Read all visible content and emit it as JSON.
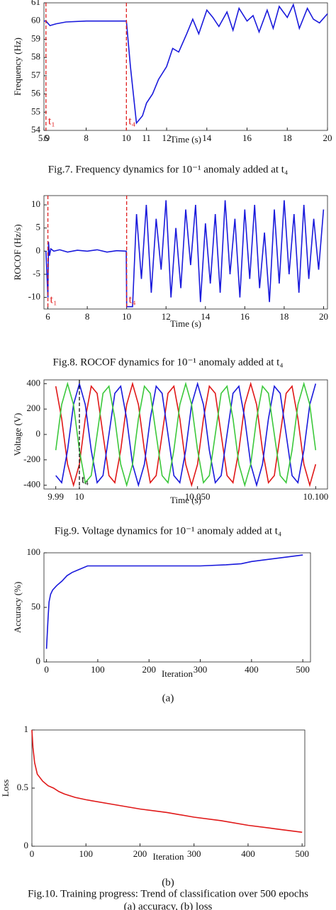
{
  "chart_data": [
    {
      "type": "line",
      "caption": "Fig.7.  Frequency dynamics for 10⁻¹ anomaly added at t₄",
      "xlabel": "Time (s)",
      "ylabel": "Frequency (Hz)",
      "x": [
        5.9,
        6,
        6.2,
        6.5,
        7,
        8,
        9,
        10,
        10.2,
        10.5,
        10.8,
        11,
        11.3,
        11.6,
        12,
        12.3,
        12.6,
        13,
        13.3,
        13.6,
        14,
        14.3,
        14.6,
        15,
        15.3,
        15.6,
        16,
        16.3,
        16.6,
        17,
        17.3,
        17.6,
        18,
        18.3,
        18.6,
        19,
        19.3,
        19.6,
        20
      ],
      "series": [
        {
          "color": "#1a1adc",
          "values": [
            60,
            60,
            59.75,
            59.85,
            59.95,
            60,
            60,
            60,
            57.5,
            54.4,
            54.8,
            55.5,
            56,
            56.8,
            57.5,
            58.5,
            58.3,
            59.3,
            60.1,
            59.3,
            60.6,
            60.2,
            59.7,
            60.5,
            59.5,
            60.7,
            60,
            60.3,
            59.4,
            60.6,
            59.6,
            60.8,
            60.2,
            60.9,
            59.6,
            60.7,
            60.1,
            59.9,
            60.4
          ]
        }
      ],
      "xlim": [
        5.9,
        20
      ],
      "xticks": [
        5.9,
        6,
        8,
        10,
        11,
        12,
        14,
        16,
        18,
        20
      ],
      "ylim": [
        54,
        61
      ],
      "yticks": [
        54,
        55,
        56,
        57,
        58,
        59,
        60,
        61
      ],
      "markers": [
        {
          "x": 6,
          "label": "t₁",
          "color": "#e02020"
        },
        {
          "x": 10,
          "label": "t₄",
          "color": "#e02020"
        }
      ]
    },
    {
      "type": "line",
      "caption": "Fig.8.  ROCOF dynamics for 10⁻¹ anomaly added at t₄",
      "xlabel": "Time (s)",
      "ylabel": "ROCOF (Hz/s)",
      "x": [
        5.9,
        6,
        6.03,
        6.08,
        6.15,
        6.3,
        6.6,
        7,
        7.5,
        8,
        8.5,
        9,
        9.5,
        9.98,
        10,
        10.05,
        10.3,
        10.4,
        10.5,
        10.75,
        11,
        11.25,
        11.5,
        11.75,
        12,
        12.25,
        12.5,
        12.75,
        13,
        13.25,
        13.5,
        13.75,
        14,
        14.25,
        14.5,
        14.75,
        15,
        15.25,
        15.5,
        15.75,
        16,
        16.25,
        16.5,
        16.75,
        17,
        17.25,
        17.5,
        17.75,
        18,
        18.25,
        18.5,
        18.75,
        19,
        19.25,
        19.5,
        19.75,
        20
      ],
      "series": [
        {
          "color": "#1a1adc",
          "values": [
            0,
            -10,
            2,
            -1,
            0.5,
            0,
            0.3,
            -0.2,
            0.2,
            0,
            0.3,
            -0.2,
            0.1,
            0,
            -12,
            -12,
            -12,
            -2,
            8,
            -6,
            10,
            -9,
            7,
            -4,
            11,
            -10,
            5,
            -8,
            9,
            -3,
            10,
            -11,
            6,
            -7,
            8,
            -9,
            11,
            -5,
            7,
            -10,
            9,
            -6,
            10,
            -8,
            4,
            -11,
            9,
            -7,
            11,
            -5,
            8,
            -9,
            10,
            -6,
            7,
            -4,
            9
          ]
        }
      ],
      "xlim": [
        5.8,
        20.2
      ],
      "xticks": [
        6,
        8,
        10,
        12,
        14,
        16,
        18,
        20
      ],
      "ylim": [
        -12.5,
        12
      ],
      "yticks": [
        -10,
        -5,
        0,
        5,
        10
      ],
      "markers": [
        {
          "x": 6,
          "label": "t₁",
          "color": "#e02020"
        },
        {
          "x": 10,
          "label": "t₄",
          "color": "#e02020"
        }
      ]
    },
    {
      "type": "line",
      "caption": "Fig.9.  Voltage dynamics for 10⁻¹ anomaly added at t₄",
      "xlabel": "Time (s)",
      "ylabel": "Voltage (V)",
      "x": [
        9.99,
        9.9925,
        9.995,
        9.9975,
        10,
        10.0025,
        10.005,
        10.0075,
        10.01,
        10.0125,
        10.015,
        10.0175,
        10.02,
        10.0225,
        10.025,
        10.0275,
        10.03,
        10.0325,
        10.035,
        10.0375,
        10.04,
        10.0425,
        10.045,
        10.0475,
        10.05,
        10.0525,
        10.055,
        10.0575,
        10.06,
        10.0625,
        10.065,
        10.0675,
        10.07,
        10.0725,
        10.075,
        10.0775,
        10.08,
        10.0825,
        10.085,
        10.0875,
        10.09,
        10.0925,
        10.095,
        10.0975,
        10.1
      ],
      "series": [
        {
          "color": "#e01818",
          "values": [
            380,
            124,
            -235,
            -400,
            -235,
            124,
            380,
            324,
            0,
            -324,
            -380,
            -124,
            235,
            400,
            235,
            -124,
            -380,
            -324,
            0,
            324,
            380,
            124,
            -235,
            -400,
            -235,
            124,
            380,
            324,
            0,
            -324,
            -380,
            -124,
            235,
            400,
            235,
            -124,
            -380,
            -324,
            0,
            324,
            380,
            124,
            -235,
            -400,
            -235
          ]
        },
        {
          "color": "#1a1adc",
          "values": [
            -324,
            -380,
            -124,
            235,
            400,
            235,
            -124,
            -380,
            -324,
            0,
            324,
            380,
            124,
            -235,
            -400,
            -235,
            124,
            380,
            324,
            0,
            -324,
            -380,
            -124,
            235,
            400,
            235,
            -124,
            -380,
            -324,
            0,
            324,
            380,
            124,
            -235,
            -400,
            -235,
            124,
            380,
            324,
            0,
            -324,
            -380,
            -124,
            235,
            400
          ]
        },
        {
          "color": "#3cc83c",
          "values": [
            -124,
            235,
            400,
            235,
            -124,
            -380,
            -324,
            0,
            324,
            380,
            124,
            -235,
            -400,
            -235,
            124,
            380,
            324,
            0,
            -324,
            -380,
            -124,
            235,
            400,
            235,
            -124,
            -380,
            -324,
            0,
            324,
            380,
            124,
            -235,
            -400,
            -235,
            124,
            380,
            324,
            0,
            -324,
            -380,
            -124,
            235,
            400,
            235,
            -124
          ]
        }
      ],
      "xlim": [
        9.985,
        10.105
      ],
      "xticks": [
        9.99,
        10,
        {
          "value": 10.05,
          "label": "10.050"
        },
        {
          "value": 10.1,
          "label": "10.100"
        }
      ],
      "ylim": [
        -430,
        430
      ],
      "yticks": [
        -400,
        -200,
        0,
        200,
        400
      ],
      "markers": [
        {
          "x": 10,
          "label": "t₄",
          "color": "#111111"
        }
      ]
    },
    {
      "type": "line",
      "caption": "(a)",
      "xlabel": "Iteration",
      "ylabel": "Accuracy (%)",
      "x": [
        0,
        3,
        5,
        8,
        12,
        20,
        30,
        40,
        50,
        60,
        80,
        100,
        150,
        200,
        250,
        300,
        350,
        380,
        400,
        450,
        500
      ],
      "series": [
        {
          "color": "#1a1adc",
          "values": [
            12,
            40,
            55,
            62,
            66,
            70,
            74,
            79,
            82,
            84,
            88,
            88,
            88,
            88,
            88,
            88,
            89,
            90,
            92,
            95,
            98
          ]
        }
      ],
      "xlim": [
        -5,
        515
      ],
      "xticks": [
        0,
        100,
        200,
        300,
        400,
        500
      ],
      "ylim": [
        0,
        100
      ],
      "yticks": [
        0,
        50,
        100
      ]
    },
    {
      "type": "line",
      "caption": "(b)",
      "xlabel": "Iteration",
      "ylabel": "Loss",
      "x": [
        0,
        2,
        5,
        10,
        20,
        30,
        40,
        50,
        60,
        80,
        100,
        150,
        200,
        250,
        300,
        350,
        400,
        450,
        500
      ],
      "series": [
        {
          "color": "#e01818",
          "values": [
            1,
            0.85,
            0.72,
            0.62,
            0.56,
            0.52,
            0.5,
            0.47,
            0.45,
            0.42,
            0.4,
            0.36,
            0.32,
            0.29,
            0.25,
            0.22,
            0.18,
            0.15,
            0.12
          ]
        }
      ],
      "xlim": [
        0,
        505
      ],
      "xticks": [
        0,
        100,
        200,
        300,
        400,
        500
      ],
      "ylim": [
        0,
        1
      ],
      "yticks": [
        0,
        0.5,
        1
      ]
    }
  ],
  "figure_caption": {
    "line1": "Fig.10. Training progress: Trend of classification over 500 epochs",
    "line2": "(a) accuracy, (b) loss"
  }
}
